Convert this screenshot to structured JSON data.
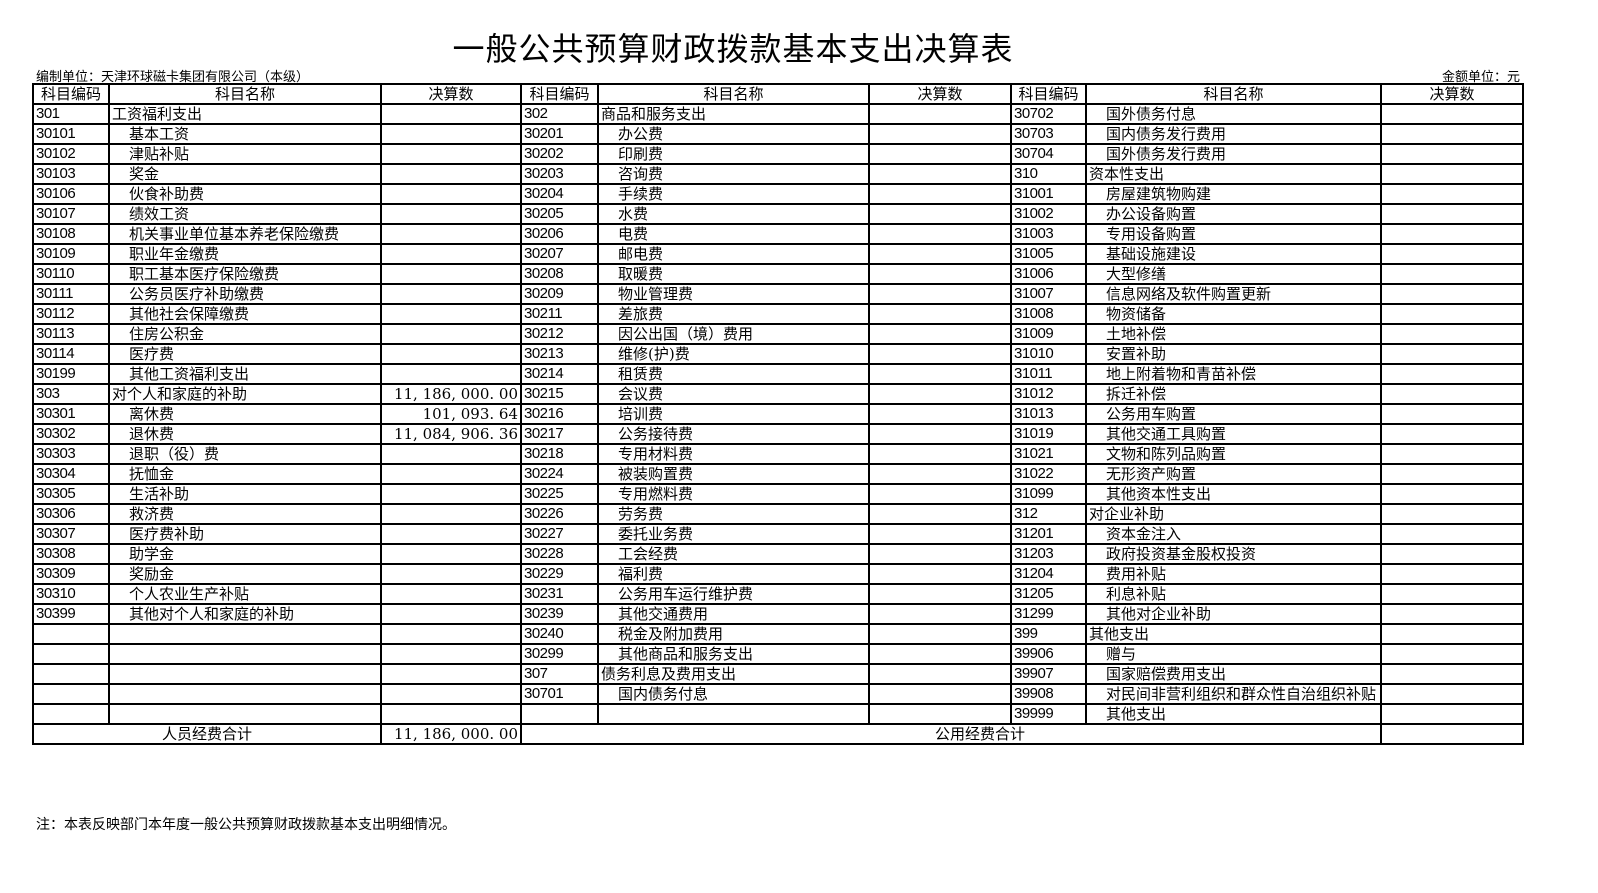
{
  "title": "一般公共预算财政拨款基本支出决算表",
  "unit_label": "编制单位：天津环球磁卡集团有限公司（本级）",
  "currency_label": "金额单位：元",
  "headers": [
    "科目编码",
    "科目名称",
    "决算数",
    "科目编码",
    "科目名称",
    "决算数",
    "科目编码",
    "科目名称",
    "决算数"
  ],
  "groups": [
    [
      [
        "301",
        "工资福利支出",
        "",
        0
      ],
      [
        "30101",
        "基本工资",
        "",
        1
      ],
      [
        "30102",
        "津贴补贴",
        "",
        1
      ],
      [
        "30103",
        "奖金",
        "",
        1
      ],
      [
        "30106",
        "伙食补助费",
        "",
        1
      ],
      [
        "30107",
        "绩效工资",
        "",
        1
      ],
      [
        "30108",
        "机关事业单位基本养老保险缴费",
        "",
        1
      ],
      [
        "30109",
        "职业年金缴费",
        "",
        1
      ],
      [
        "30110",
        "职工基本医疗保险缴费",
        "",
        1
      ],
      [
        "30111",
        "公务员医疗补助缴费",
        "",
        1
      ],
      [
        "30112",
        "其他社会保障缴费",
        "",
        1
      ],
      [
        "30113",
        "住房公积金",
        "",
        1
      ],
      [
        "30114",
        "医疗费",
        "",
        1
      ],
      [
        "30199",
        "其他工资福利支出",
        "",
        1
      ],
      [
        "303",
        "对个人和家庭的补助",
        "11, 186, 000. 00",
        0
      ],
      [
        "30301",
        "离休费",
        "101, 093. 64",
        1
      ],
      [
        "30302",
        "退休费",
        "11, 084, 906. 36",
        1
      ],
      [
        "30303",
        "退职（役）费",
        "",
        1
      ],
      [
        "30304",
        "抚恤金",
        "",
        1
      ],
      [
        "30305",
        "生活补助",
        "",
        1
      ],
      [
        "30306",
        "救济费",
        "",
        1
      ],
      [
        "30307",
        "医疗费补助",
        "",
        1
      ],
      [
        "30308",
        "助学金",
        "",
        1
      ],
      [
        "30309",
        "奖励金",
        "",
        1
      ],
      [
        "30310",
        "个人农业生产补贴",
        "",
        1
      ],
      [
        "30399",
        "其他对个人和家庭的补助",
        "",
        1
      ],
      [
        "",
        "",
        "",
        0
      ],
      [
        "",
        "",
        "",
        0
      ],
      [
        "",
        "",
        "",
        0
      ],
      [
        "",
        "",
        "",
        0
      ],
      [
        "",
        "",
        "",
        0
      ]
    ],
    [
      [
        "302",
        "商品和服务支出",
        "",
        0
      ],
      [
        "30201",
        "办公费",
        "",
        1
      ],
      [
        "30202",
        "印刷费",
        "",
        1
      ],
      [
        "30203",
        "咨询费",
        "",
        1
      ],
      [
        "30204",
        "手续费",
        "",
        1
      ],
      [
        "30205",
        "水费",
        "",
        1
      ],
      [
        "30206",
        "电费",
        "",
        1
      ],
      [
        "30207",
        "邮电费",
        "",
        1
      ],
      [
        "30208",
        "取暖费",
        "",
        1
      ],
      [
        "30209",
        "物业管理费",
        "",
        1
      ],
      [
        "30211",
        "差旅费",
        "",
        1
      ],
      [
        "30212",
        "因公出国（境）费用",
        "",
        1
      ],
      [
        "30213",
        "维修(护)费",
        "",
        1
      ],
      [
        "30214",
        "租赁费",
        "",
        1
      ],
      [
        "30215",
        "会议费",
        "",
        1
      ],
      [
        "30216",
        "培训费",
        "",
        1
      ],
      [
        "30217",
        "公务接待费",
        "",
        1
      ],
      [
        "30218",
        "专用材料费",
        "",
        1
      ],
      [
        "30224",
        "被装购置费",
        "",
        1
      ],
      [
        "30225",
        "专用燃料费",
        "",
        1
      ],
      [
        "30226",
        "劳务费",
        "",
        1
      ],
      [
        "30227",
        "委托业务费",
        "",
        1
      ],
      [
        "30228",
        "工会经费",
        "",
        1
      ],
      [
        "30229",
        "福利费",
        "",
        1
      ],
      [
        "30231",
        "公务用车运行维护费",
        "",
        1
      ],
      [
        "30239",
        "其他交通费用",
        "",
        1
      ],
      [
        "30240",
        "税金及附加费用",
        "",
        1
      ],
      [
        "30299",
        "其他商品和服务支出",
        "",
        1
      ],
      [
        "307",
        "债务利息及费用支出",
        "",
        0
      ],
      [
        "30701",
        "国内债务付息",
        "",
        1
      ],
      [
        "",
        "",
        "",
        0
      ]
    ],
    [
      [
        "30702",
        "国外债务付息",
        "",
        1
      ],
      [
        "30703",
        "国内债务发行费用",
        "",
        1
      ],
      [
        "30704",
        "国外债务发行费用",
        "",
        1
      ],
      [
        "310",
        "资本性支出",
        "",
        0
      ],
      [
        "31001",
        "房屋建筑物购建",
        "",
        1
      ],
      [
        "31002",
        "办公设备购置",
        "",
        1
      ],
      [
        "31003",
        "专用设备购置",
        "",
        1
      ],
      [
        "31005",
        "基础设施建设",
        "",
        1
      ],
      [
        "31006",
        "大型修缮",
        "",
        1
      ],
      [
        "31007",
        "信息网络及软件购置更新",
        "",
        1
      ],
      [
        "31008",
        "物资储备",
        "",
        1
      ],
      [
        "31009",
        "土地补偿",
        "",
        1
      ],
      [
        "31010",
        "安置补助",
        "",
        1
      ],
      [
        "31011",
        "地上附着物和青苗补偿",
        "",
        1
      ],
      [
        "31012",
        "拆迁补偿",
        "",
        1
      ],
      [
        "31013",
        "公务用车购置",
        "",
        1
      ],
      [
        "31019",
        "其他交通工具购置",
        "",
        1
      ],
      [
        "31021",
        "文物和陈列品购置",
        "",
        1
      ],
      [
        "31022",
        "无形资产购置",
        "",
        1
      ],
      [
        "31099",
        "其他资本性支出",
        "",
        1
      ],
      [
        "312",
        "对企业补助",
        "",
        0
      ],
      [
        "31201",
        "资本金注入",
        "",
        1
      ],
      [
        "31203",
        "政府投资基金股权投资",
        "",
        1
      ],
      [
        "31204",
        "费用补贴",
        "",
        1
      ],
      [
        "31205",
        "利息补贴",
        "",
        1
      ],
      [
        "31299",
        "其他对企业补助",
        "",
        1
      ],
      [
        "399",
        "其他支出",
        "",
        0
      ],
      [
        "39906",
        "赠与",
        "",
        1
      ],
      [
        "39907",
        "国家赔偿费用支出",
        "",
        1
      ],
      [
        "39908",
        "对民间非营利组织和群众性自治组织补贴",
        "",
        1
      ],
      [
        "39999",
        "其他支出",
        "",
        1
      ]
    ]
  ],
  "totals": {
    "personnel_label": "人员经费合计",
    "personnel_value": "11, 186, 000. 00",
    "public_label": "公用经费合计",
    "public_value": ""
  },
  "note": "注：本表反映部门本年度一般公共预算财政拨款基本支出明细情况。"
}
